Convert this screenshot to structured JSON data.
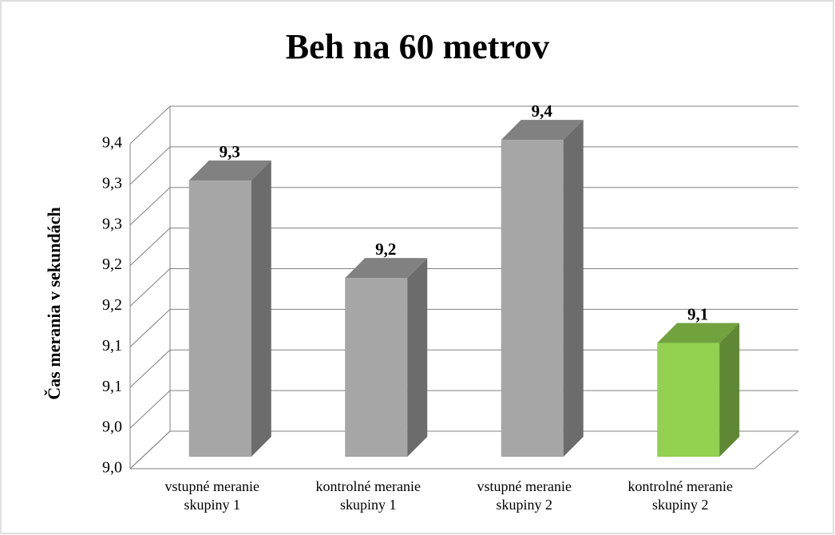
{
  "chart_data": {
    "type": "bar3d",
    "title": "Beh na 60 metrov",
    "y_label": "Čas merania v sekundách",
    "categories": [
      "vstupné meranie skupiny 1",
      "kontrolné meranie skupiny 1",
      "vstupné meranie skupiny 2",
      "kontrolné meranie skupiny 2"
    ],
    "values": [
      9.34,
      9.22,
      9.39,
      9.14
    ],
    "value_labels": [
      "9,3",
      "9,2",
      "9,4",
      "9,1"
    ],
    "colors": [
      "#a6a6a6",
      "#a6a6a6",
      "#a6a6a6",
      "#92d050"
    ],
    "ylim": [
      9.0,
      9.4
    ],
    "yticks": [
      {
        "value": 9.0,
        "label": "9,0"
      },
      {
        "value": 9.05,
        "label": "9,0"
      },
      {
        "value": 9.1,
        "label": "9,1"
      },
      {
        "value": 9.15,
        "label": "9,1"
      },
      {
        "value": 9.2,
        "label": "9,2"
      },
      {
        "value": 9.25,
        "label": "9,2"
      },
      {
        "value": 9.3,
        "label": "9,3"
      },
      {
        "value": 9.35,
        "label": "9,3"
      },
      {
        "value": 9.4,
        "label": "9,4"
      }
    ],
    "grid": true
  }
}
